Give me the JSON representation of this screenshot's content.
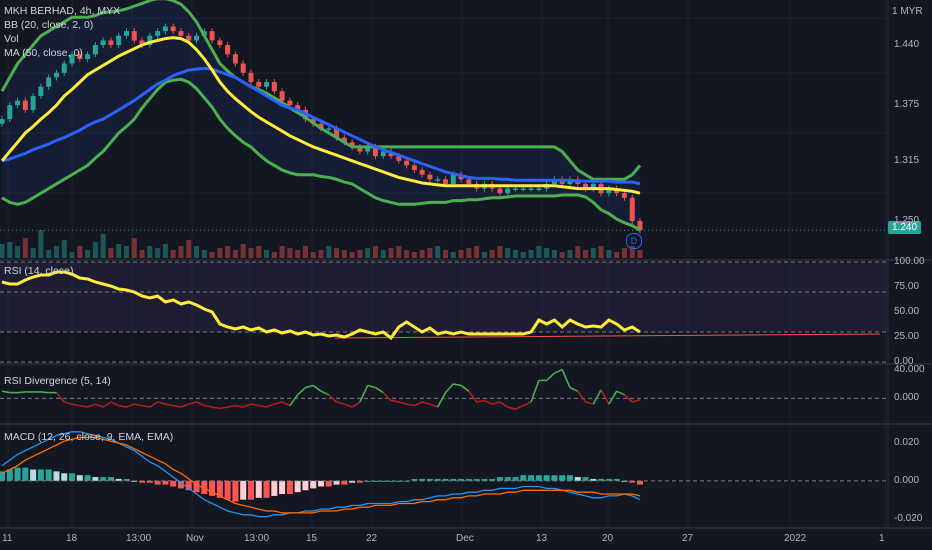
{
  "header": {
    "symbol_line": "MKH BERHAD, 4h, MYX",
    "bb_label": "BB (20, close, 2, 0)",
    "vol_label": "Vol",
    "ma_label": "MA (50, close, 0)",
    "currency": "1 MYR"
  },
  "panes": {
    "rsi_label": "RSI (14, close)",
    "div_label": "RSI Divergence (5, 14)",
    "macd_label": "MACD (12, 26, close, 9, EMA, EMA)"
  },
  "price_badge": "1.240",
  "dividend_marker": "D",
  "colors": {
    "up": "#26a69a",
    "down": "#ef5350",
    "bb": "#4caf50",
    "ma": "#2962ff",
    "basis": "#ffeb3b",
    "rsi": "#ffeb3b",
    "div_up": "#4caf50",
    "div_down": "#b71c1c",
    "macd": "#2196f3",
    "signal": "#ff6d00"
  },
  "chart_data": [
    {
      "type": "candlestick",
      "ylim": [
        1.21,
        1.48
      ],
      "yticks": [
        "1.440",
        "1.375",
        "1.315",
        "1.250"
      ],
      "xticks": [
        "11",
        "18",
        "13:00",
        "Nov",
        "13:00",
        "15",
        "22",
        "Dec",
        "13",
        "20",
        "27",
        "2022",
        "1"
      ],
      "last_price": 1.24,
      "close": [
        1.36,
        1.375,
        1.38,
        1.37,
        1.385,
        1.395,
        1.405,
        1.41,
        1.42,
        1.43,
        1.425,
        1.43,
        1.44,
        1.445,
        1.44,
        1.45,
        1.455,
        1.445,
        1.44,
        1.45,
        1.455,
        1.46,
        1.455,
        1.45,
        1.445,
        1.45,
        1.455,
        1.445,
        1.44,
        1.43,
        1.42,
        1.41,
        1.4,
        1.395,
        1.4,
        1.39,
        1.38,
        1.375,
        1.37,
        1.36,
        1.355,
        1.35,
        1.35,
        1.34,
        1.335,
        1.33,
        1.325,
        1.33,
        1.32,
        1.325,
        1.32,
        1.315,
        1.31,
        1.305,
        1.3,
        1.295,
        1.295,
        1.29,
        1.3,
        1.295,
        1.29,
        1.285,
        1.29,
        1.285,
        1.28,
        1.285,
        1.285,
        1.285,
        1.285,
        1.285,
        1.29,
        1.295,
        1.29,
        1.295,
        1.29,
        1.285,
        1.29,
        1.28,
        1.285,
        1.28,
        1.275,
        1.25,
        1.24
      ],
      "bb_upper": [
        1.39,
        1.405,
        1.42,
        1.43,
        1.44,
        1.45,
        1.455,
        1.46,
        1.465,
        1.47,
        1.47,
        1.47,
        1.472,
        1.475,
        1.476,
        1.477,
        1.479,
        1.482,
        1.485,
        1.488,
        1.49,
        1.49,
        1.488,
        1.484,
        1.476,
        1.465,
        1.45,
        1.435,
        1.42,
        1.412,
        1.405,
        1.4,
        1.395,
        1.392,
        1.388,
        1.383,
        1.378,
        1.372,
        1.367,
        1.362,
        1.356,
        1.35,
        1.345,
        1.34,
        1.335,
        1.33,
        1.33,
        1.33,
        1.33,
        1.33,
        1.33,
        1.33,
        1.33,
        1.33,
        1.33,
        1.33,
        1.33,
        1.33,
        1.33,
        1.33,
        1.33,
        1.33,
        1.33,
        1.33,
        1.33,
        1.33,
        1.33,
        1.33,
        1.33,
        1.33,
        1.33,
        1.33,
        1.325,
        1.315,
        1.305,
        1.3,
        1.295,
        1.295,
        1.295,
        1.295,
        1.295,
        1.3,
        1.31
      ],
      "bb_lower": [
        1.275,
        1.27,
        1.268,
        1.27,
        1.275,
        1.28,
        1.285,
        1.29,
        1.295,
        1.3,
        1.305,
        1.31,
        1.318,
        1.325,
        1.335,
        1.345,
        1.352,
        1.36,
        1.372,
        1.382,
        1.392,
        1.4,
        1.402,
        1.403,
        1.4,
        1.393,
        1.383,
        1.373,
        1.36,
        1.35,
        1.342,
        1.335,
        1.33,
        1.322,
        1.315,
        1.31,
        1.305,
        1.302,
        1.3,
        1.3,
        1.3,
        1.298,
        1.297,
        1.295,
        1.292,
        1.29,
        1.285,
        1.28,
        1.275,
        1.272,
        1.27,
        1.268,
        1.268,
        1.268,
        1.269,
        1.27,
        1.27,
        1.27,
        1.272,
        1.272,
        1.273,
        1.273,
        1.274,
        1.275,
        1.275,
        1.276,
        1.277,
        1.277,
        1.277,
        1.277,
        1.277,
        1.277,
        1.278,
        1.278,
        1.278,
        1.276,
        1.27,
        1.262,
        1.258,
        1.252,
        1.248,
        1.245,
        1.24
      ],
      "bb_basis": [
        1.315,
        1.325,
        1.335,
        1.345,
        1.352,
        1.36,
        1.367,
        1.375,
        1.385,
        1.392,
        1.4,
        1.408,
        1.413,
        1.418,
        1.423,
        1.428,
        1.432,
        1.436,
        1.44,
        1.443,
        1.445,
        1.447,
        1.448,
        1.447,
        1.443,
        1.435,
        1.425,
        1.413,
        1.4,
        1.39,
        1.382,
        1.375,
        1.368,
        1.362,
        1.357,
        1.352,
        1.347,
        1.342,
        1.338,
        1.334,
        1.33,
        1.327,
        1.324,
        1.321,
        1.318,
        1.315,
        1.312,
        1.309,
        1.306,
        1.303,
        1.3,
        1.297,
        1.295,
        1.293,
        1.291,
        1.29,
        1.289,
        1.288,
        1.288,
        1.288,
        1.288,
        1.288,
        1.288,
        1.288,
        1.288,
        1.288,
        1.288,
        1.288,
        1.288,
        1.288,
        1.288,
        1.288,
        1.287,
        1.286,
        1.285,
        1.285,
        1.285,
        1.285,
        1.285,
        1.284,
        1.283,
        1.282,
        1.28
      ],
      "ma50": [
        1.315,
        1.317,
        1.32,
        1.323,
        1.327,
        1.33,
        1.333,
        1.337,
        1.34,
        1.344,
        1.348,
        1.353,
        1.357,
        1.36,
        1.365,
        1.37,
        1.375,
        1.38,
        1.386,
        1.392,
        1.398,
        1.402,
        1.407,
        1.41,
        1.413,
        1.414,
        1.415,
        1.414,
        1.411,
        1.408,
        1.405,
        1.4,
        1.395,
        1.39,
        1.385,
        1.38,
        1.375,
        1.372,
        1.37,
        1.366,
        1.362,
        1.358,
        1.354,
        1.35,
        1.346,
        1.342,
        1.338,
        1.334,
        1.33,
        1.327,
        1.324,
        1.321,
        1.318,
        1.315,
        1.312,
        1.309,
        1.306,
        1.303,
        1.301,
        1.299,
        1.297,
        1.296,
        1.296,
        1.296,
        1.295,
        1.295,
        1.294,
        1.294,
        1.294,
        1.294,
        1.294,
        1.294,
        1.294,
        1.294,
        1.293,
        1.293,
        1.293,
        1.293,
        1.293,
        1.292,
        1.292,
        1.292,
        1.29
      ],
      "volume": [
        0.35,
        0.4,
        0.3,
        0.5,
        0.25,
        0.7,
        0.2,
        0.3,
        0.45,
        0.15,
        0.3,
        0.2,
        0.4,
        0.6,
        0.25,
        0.35,
        0.3,
        0.5,
        0.2,
        0.3,
        0.25,
        0.35,
        0.2,
        0.3,
        0.45,
        0.3,
        0.2,
        0.15,
        0.25,
        0.3,
        0.2,
        0.35,
        0.25,
        0.3,
        0.2,
        0.15,
        0.3,
        0.25,
        0.2,
        0.3,
        0.15,
        0.2,
        0.3,
        0.25,
        0.2,
        0.15,
        0.2,
        0.25,
        0.3,
        0.2,
        0.25,
        0.3,
        0.2,
        0.15,
        0.2,
        0.25,
        0.3,
        0.2,
        0.15,
        0.2,
        0.25,
        0.3,
        0.15,
        0.2,
        0.3,
        0.25,
        0.2,
        0.15,
        0.2,
        0.3,
        0.25,
        0.2,
        0.15,
        0.2,
        0.3,
        0.2,
        0.25,
        0.3,
        0.2,
        0.15,
        0.25,
        0.3,
        0.2
      ]
    },
    {
      "type": "line",
      "name": "RSI (14, close)",
      "ylim": [
        0,
        100
      ],
      "yticks": [
        "100.00",
        "75.00",
        "50.00",
        "25.00",
        "0.00"
      ],
      "bands": [
        30,
        70
      ],
      "values": [
        80,
        78,
        78,
        82,
        85,
        87,
        87,
        90,
        90,
        88,
        84,
        83,
        80,
        78,
        76,
        73,
        72,
        70,
        66,
        64,
        66,
        60,
        62,
        58,
        60,
        57,
        53,
        50,
        38,
        35,
        33,
        35,
        32,
        34,
        30,
        32,
        29,
        31,
        28,
        30,
        27,
        28,
        26,
        27,
        25,
        28,
        32,
        30,
        28,
        30,
        24,
        35,
        40,
        35,
        30,
        34,
        28,
        30,
        28,
        30,
        28,
        28,
        28,
        28,
        28,
        28,
        28,
        28,
        30,
        42,
        38,
        42,
        35,
        42,
        38,
        35,
        36,
        35,
        42,
        38,
        32,
        35,
        30
      ]
    },
    {
      "type": "line",
      "name": "RSI Divergence (5, 14)",
      "ylim": [
        -30,
        45
      ],
      "yticks": [
        "40.000",
        "0.000"
      ],
      "values": [
        10,
        8,
        8,
        9,
        9,
        9,
        8,
        8,
        -5,
        -8,
        -10,
        -12,
        -8,
        -12,
        -5,
        -10,
        -12,
        -8,
        -10,
        -12,
        -5,
        -8,
        -10,
        -12,
        -8,
        -5,
        -10,
        -12,
        -14,
        -12,
        -10,
        -12,
        -8,
        -10,
        -12,
        -8,
        -5,
        -10,
        5,
        15,
        18,
        10,
        5,
        -5,
        -8,
        -12,
        -5,
        18,
        15,
        8,
        -3,
        -5,
        -8,
        -10,
        -5,
        -8,
        -12,
        8,
        20,
        18,
        10,
        -5,
        -3,
        -8,
        -5,
        -12,
        -15,
        -10,
        -5,
        25,
        25,
        35,
        40,
        15,
        10,
        -5,
        -8,
        12,
        -8,
        10,
        5,
        -5,
        -2
      ]
    },
    {
      "type": "bar+line",
      "name": "MACD (12, 26, close, 9, EMA, EMA)",
      "ylim": [
        -0.025,
        0.028
      ],
      "yticks": [
        "0.020",
        "0.000",
        "-0.020"
      ],
      "histogram": [
        0.005,
        0.006,
        0.007,
        0.007,
        0.006,
        0.006,
        0.006,
        0.005,
        0.004,
        0.004,
        0.003,
        0.003,
        0.002,
        0.002,
        0.002,
        0.001,
        0.001,
        0.0,
        -0.001,
        -0.001,
        -0.002,
        -0.002,
        -0.003,
        -0.004,
        -0.005,
        -0.006,
        -0.007,
        -0.008,
        -0.009,
        -0.01,
        -0.011,
        -0.01,
        -0.01,
        -0.009,
        -0.009,
        -0.008,
        -0.007,
        -0.007,
        -0.006,
        -0.005,
        -0.004,
        -0.003,
        -0.003,
        -0.002,
        -0.002,
        -0.001,
        -0.001,
        0.0,
        0.0,
        0.0,
        0.0,
        0.0,
        0.0,
        0.001,
        0.001,
        0.001,
        0.001,
        0.001,
        0.001,
        0.001,
        0.001,
        0.001,
        0.001,
        0.001,
        0.002,
        0.002,
        0.002,
        0.003,
        0.003,
        0.003,
        0.003,
        0.003,
        0.003,
        0.003,
        0.002,
        0.002,
        0.001,
        0.001,
        0.001,
        0.001,
        0.0,
        -0.001,
        -0.002
      ],
      "macd": [
        0.008,
        0.011,
        0.014,
        0.016,
        0.018,
        0.02,
        0.022,
        0.024,
        0.025,
        0.026,
        0.026,
        0.025,
        0.024,
        0.023,
        0.022,
        0.02,
        0.018,
        0.016,
        0.013,
        0.01,
        0.008,
        0.005,
        0.002,
        -0.001,
        -0.004,
        -0.007,
        -0.01,
        -0.012,
        -0.014,
        -0.016,
        -0.017,
        -0.018,
        -0.018,
        -0.019,
        -0.019,
        -0.018,
        -0.018,
        -0.017,
        -0.017,
        -0.016,
        -0.016,
        -0.015,
        -0.015,
        -0.014,
        -0.014,
        -0.013,
        -0.013,
        -0.012,
        -0.012,
        -0.012,
        -0.012,
        -0.011,
        -0.011,
        -0.01,
        -0.01,
        -0.009,
        -0.008,
        -0.008,
        -0.007,
        -0.007,
        -0.006,
        -0.006,
        -0.005,
        -0.005,
        -0.004,
        -0.004,
        -0.004,
        -0.003,
        -0.003,
        -0.003,
        -0.004,
        -0.004,
        -0.005,
        -0.006,
        -0.007,
        -0.008,
        -0.009,
        -0.009,
        -0.008,
        -0.008,
        -0.007,
        -0.008,
        -0.01
      ],
      "signal": [
        0.004,
        0.006,
        0.008,
        0.011,
        0.013,
        0.015,
        0.017,
        0.019,
        0.021,
        0.022,
        0.023,
        0.023,
        0.023,
        0.022,
        0.021,
        0.02,
        0.019,
        0.017,
        0.015,
        0.013,
        0.011,
        0.009,
        0.006,
        0.004,
        0.001,
        -0.002,
        -0.004,
        -0.006,
        -0.008,
        -0.01,
        -0.012,
        -0.013,
        -0.014,
        -0.015,
        -0.016,
        -0.016,
        -0.017,
        -0.017,
        -0.017,
        -0.017,
        -0.017,
        -0.016,
        -0.016,
        -0.016,
        -0.015,
        -0.015,
        -0.014,
        -0.014,
        -0.013,
        -0.013,
        -0.013,
        -0.012,
        -0.012,
        -0.012,
        -0.011,
        -0.011,
        -0.01,
        -0.01,
        -0.009,
        -0.009,
        -0.008,
        -0.008,
        -0.007,
        -0.007,
        -0.007,
        -0.006,
        -0.006,
        -0.005,
        -0.005,
        -0.005,
        -0.005,
        -0.005,
        -0.005,
        -0.005,
        -0.006,
        -0.006,
        -0.006,
        -0.007,
        -0.007,
        -0.007,
        -0.007,
        -0.007,
        -0.008
      ]
    }
  ]
}
